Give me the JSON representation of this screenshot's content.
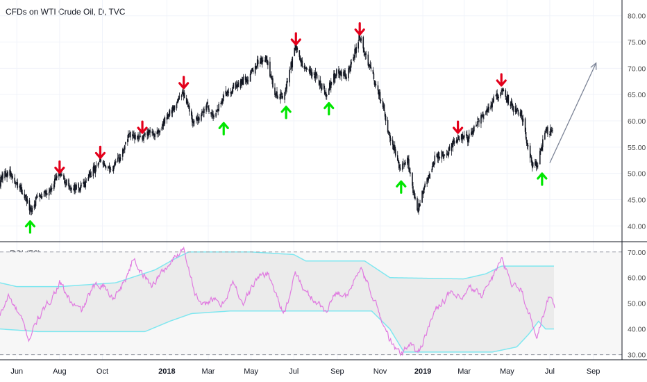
{
  "chart_data": [
    {
      "type": "candlestick",
      "title": "CFDs on WTI Crude Oil, D, TVC",
      "ylim": [
        37,
        83
      ],
      "y_ticks": [
        "40.00",
        "45.00",
        "50.00",
        "55.00",
        "60.00",
        "65.00",
        "70.00",
        "75.00",
        "80.00"
      ],
      "x_start": "2017-05-08",
      "x_end": "2019-10-12",
      "price_path": [
        [
          "2017-05-08",
          48.5
        ],
        [
          "2017-05-20",
          50.5
        ],
        [
          "2017-06-01",
          47.5
        ],
        [
          "2017-06-10",
          46.5
        ],
        [
          "2017-06-21",
          42.5
        ],
        [
          "2017-07-01",
          46.0
        ],
        [
          "2017-07-15",
          46.5
        ],
        [
          "2017-08-01",
          49.8
        ],
        [
          "2017-08-15",
          47.5
        ],
        [
          "2017-08-31",
          47.0
        ],
        [
          "2017-09-15",
          50.0
        ],
        [
          "2017-09-28",
          52.2
        ],
        [
          "2017-10-10",
          50.5
        ],
        [
          "2017-10-25",
          52.5
        ],
        [
          "2017-11-07",
          57.2
        ],
        [
          "2017-11-20",
          56.5
        ],
        [
          "2017-12-05",
          57.5
        ],
        [
          "2017-12-20",
          58.0
        ],
        [
          "2018-01-05",
          61.5
        ],
        [
          "2018-01-25",
          65.5
        ],
        [
          "2018-02-09",
          59.2
        ],
        [
          "2018-02-25",
          63.0
        ],
        [
          "2018-03-10",
          61.0
        ],
        [
          "2018-03-25",
          65.0
        ],
        [
          "2018-04-10",
          67.0
        ],
        [
          "2018-04-25",
          68.0
        ],
        [
          "2018-05-10",
          71.0
        ],
        [
          "2018-05-22",
          72.2
        ],
        [
          "2018-06-05",
          65.0
        ],
        [
          "2018-06-18",
          65.0
        ],
        [
          "2018-07-03",
          74.2
        ],
        [
          "2018-07-15",
          70.0
        ],
        [
          "2018-08-01",
          68.5
        ],
        [
          "2018-08-16",
          65.2
        ],
        [
          "2018-09-01",
          69.8
        ],
        [
          "2018-09-15",
          68.5
        ],
        [
          "2018-10-03",
          76.0
        ],
        [
          "2018-10-20",
          69.0
        ],
        [
          "2018-11-05",
          63.0
        ],
        [
          "2018-11-15",
          56.5
        ],
        [
          "2018-11-30",
          51.0
        ],
        [
          "2018-12-10",
          52.5
        ],
        [
          "2018-12-24",
          43.0
        ],
        [
          "2019-01-05",
          48.0
        ],
        [
          "2019-01-20",
          53.5
        ],
        [
          "2019-02-05",
          54.0
        ],
        [
          "2019-02-20",
          57.0
        ],
        [
          "2019-03-05",
          56.5
        ],
        [
          "2019-03-20",
          59.5
        ],
        [
          "2019-04-05",
          62.5
        ],
        [
          "2019-04-23",
          66.0
        ],
        [
          "2019-05-10",
          62.5
        ],
        [
          "2019-05-22",
          61.0
        ],
        [
          "2019-06-05",
          52.0
        ],
        [
          "2019-06-13",
          51.5
        ],
        [
          "2019-06-25",
          58.5
        ],
        [
          "2019-07-05",
          57.5
        ]
      ],
      "signals": [
        {
          "date": "2017-06-20",
          "type": "buy",
          "price": 39.8
        },
        {
          "date": "2017-08-01",
          "type": "sell",
          "price": 51.2
        },
        {
          "date": "2017-09-28",
          "type": "sell",
          "price": 54.0
        },
        {
          "date": "2017-11-27",
          "type": "sell",
          "price": 58.8
        },
        {
          "date": "2018-01-25",
          "type": "sell",
          "price": 67.3
        },
        {
          "date": "2018-03-23",
          "type": "buy",
          "price": 58.5
        },
        {
          "date": "2018-06-20",
          "type": "buy",
          "price": 61.6
        },
        {
          "date": "2018-07-04",
          "type": "sell",
          "price": 75.6
        },
        {
          "date": "2018-08-20",
          "type": "buy",
          "price": 62.3
        },
        {
          "date": "2018-10-03",
          "type": "sell",
          "price": 77.5
        },
        {
          "date": "2018-12-01",
          "type": "buy",
          "price": 47.4
        },
        {
          "date": "2019-02-20",
          "type": "sell",
          "price": 58.8
        },
        {
          "date": "2019-04-23",
          "type": "sell",
          "price": 67.8
        },
        {
          "date": "2019-06-20",
          "type": "buy",
          "price": 48.9
        }
      ],
      "projection": {
        "from": [
          "2019-07-01",
          52.0
        ],
        "to": [
          "2019-09-05",
          71.0
        ]
      }
    },
    {
      "type": "line",
      "title": "cRSI (56)",
      "ylim": [
        28,
        74
      ],
      "y_ticks": [
        "30.00",
        "40.00",
        "50.00",
        "60.00",
        "70.00"
      ],
      "reference_lines": [
        30,
        70
      ],
      "crsi": [
        [
          "2017-05-08",
          45
        ],
        [
          "2017-05-20",
          53
        ],
        [
          "2017-06-01",
          47
        ],
        [
          "2017-06-10",
          42
        ],
        [
          "2017-06-18",
          36
        ],
        [
          "2017-07-01",
          44
        ],
        [
          "2017-07-12",
          48
        ],
        [
          "2017-08-01",
          58
        ],
        [
          "2017-08-18",
          50
        ],
        [
          "2017-09-01",
          47
        ],
        [
          "2017-09-18",
          56
        ],
        [
          "2017-10-01",
          58
        ],
        [
          "2017-10-15",
          52
        ],
        [
          "2017-11-01",
          58
        ],
        [
          "2017-11-15",
          68
        ],
        [
          "2017-11-25",
          62
        ],
        [
          "2017-12-10",
          57
        ],
        [
          "2017-12-25",
          62
        ],
        [
          "2018-01-10",
          67
        ],
        [
          "2018-01-25",
          72
        ],
        [
          "2018-02-09",
          55
        ],
        [
          "2018-02-20",
          48
        ],
        [
          "2018-03-05",
          52
        ],
        [
          "2018-03-20",
          49
        ],
        [
          "2018-04-05",
          58
        ],
        [
          "2018-04-20",
          50
        ],
        [
          "2018-05-10",
          60
        ],
        [
          "2018-05-25",
          62
        ],
        [
          "2018-06-15",
          47
        ],
        [
          "2018-06-25",
          51
        ],
        [
          "2018-07-03",
          63
        ],
        [
          "2018-07-15",
          55
        ],
        [
          "2018-08-01",
          51
        ],
        [
          "2018-08-15",
          47
        ],
        [
          "2018-09-01",
          55
        ],
        [
          "2018-09-15",
          52
        ],
        [
          "2018-10-03",
          64
        ],
        [
          "2018-10-20",
          54
        ],
        [
          "2018-11-05",
          42
        ],
        [
          "2018-11-20",
          33
        ],
        [
          "2018-12-01",
          30
        ],
        [
          "2018-12-15",
          35
        ],
        [
          "2018-12-25",
          30
        ],
        [
          "2019-01-10",
          42
        ],
        [
          "2019-01-25",
          50
        ],
        [
          "2019-02-10",
          54
        ],
        [
          "2019-02-25",
          51
        ],
        [
          "2019-03-10",
          56
        ],
        [
          "2019-03-25",
          53
        ],
        [
          "2019-04-10",
          60
        ],
        [
          "2019-04-23",
          67
        ],
        [
          "2019-05-08",
          57
        ],
        [
          "2019-05-22",
          55
        ],
        [
          "2019-06-05",
          43
        ],
        [
          "2019-06-12",
          37
        ],
        [
          "2019-06-25",
          48
        ],
        [
          "2019-07-01",
          53
        ],
        [
          "2019-07-08",
          49
        ]
      ],
      "upper_band": [
        [
          "2017-05-08",
          58
        ],
        [
          "2017-06-01",
          56.5
        ],
        [
          "2017-08-01",
          56.5
        ],
        [
          "2017-10-20",
          58
        ],
        [
          "2017-12-15",
          63
        ],
        [
          "2018-01-10",
          67
        ],
        [
          "2018-02-01",
          70
        ],
        [
          "2018-05-01",
          70
        ],
        [
          "2018-07-01",
          69
        ],
        [
          "2018-07-18",
          66.5
        ],
        [
          "2018-10-10",
          66.5
        ],
        [
          "2018-11-15",
          60
        ],
        [
          "2019-02-28",
          59.5
        ],
        [
          "2019-04-01",
          61.5
        ],
        [
          "2019-04-23",
          64.5
        ],
        [
          "2019-07-08",
          64.5
        ]
      ],
      "lower_band": [
        [
          "2017-05-08",
          40
        ],
        [
          "2017-07-01",
          39
        ],
        [
          "2017-12-01",
          39
        ],
        [
          "2018-01-05",
          43
        ],
        [
          "2018-02-05",
          46
        ],
        [
          "2018-04-01",
          47
        ],
        [
          "2018-07-01",
          47
        ],
        [
          "2018-10-20",
          47
        ],
        [
          "2018-11-15",
          40
        ],
        [
          "2018-12-05",
          31
        ],
        [
          "2019-04-10",
          31
        ],
        [
          "2019-05-15",
          33
        ],
        [
          "2019-06-01",
          38
        ],
        [
          "2019-06-15",
          43
        ],
        [
          "2019-06-25",
          40
        ],
        [
          "2019-07-08",
          40
        ]
      ]
    }
  ],
  "x_ticks": [
    {
      "label": "Jun",
      "date": "2017-06-01",
      "bold": false
    },
    {
      "label": "Aug",
      "date": "2017-08-01",
      "bold": false
    },
    {
      "label": "Oct",
      "date": "2017-10-01",
      "bold": false
    },
    {
      "label": "2018",
      "date": "2018-01-01",
      "bold": true
    },
    {
      "label": "Mar",
      "date": "2018-03-01",
      "bold": false
    },
    {
      "label": "May",
      "date": "2018-05-01",
      "bold": false
    },
    {
      "label": "Jul",
      "date": "2018-07-01",
      "bold": false
    },
    {
      "label": "Sep",
      "date": "2018-09-01",
      "bold": false
    },
    {
      "label": "Nov",
      "date": "2018-11-01",
      "bold": false
    },
    {
      "label": "2019",
      "date": "2019-01-01",
      "bold": true
    },
    {
      "label": "Mar",
      "date": "2019-03-01",
      "bold": false
    },
    {
      "label": "May",
      "date": "2019-05-01",
      "bold": false
    },
    {
      "label": "Jul",
      "date": "2019-07-01",
      "bold": false
    },
    {
      "label": "Sep",
      "date": "2019-09-01",
      "bold": false
    }
  ],
  "colors": {
    "candle": "#131722",
    "grid": "#f0f3fa",
    "axis_text": "#4a4a4a",
    "sell_arrow": "#e3001b",
    "buy_arrow": "#00e600",
    "crsi_line": "#e07be0",
    "band_line": "#7fe7f0",
    "band_fill": "#ebebeb",
    "projection": "#7b8396"
  }
}
